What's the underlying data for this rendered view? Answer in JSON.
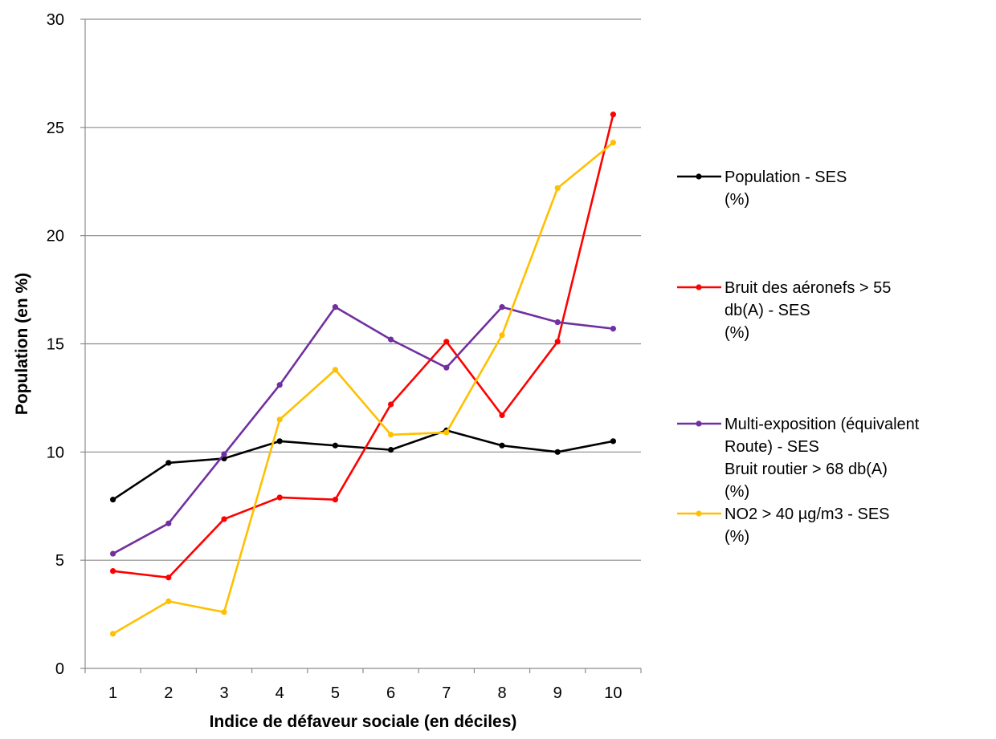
{
  "chart_data": {
    "type": "line",
    "title": "",
    "xlabel": "Indice de défaveur sociale (en déciles)",
    "ylabel": "Population (en %)",
    "categories": [
      "1",
      "2",
      "3",
      "4",
      "5",
      "6",
      "7",
      "8",
      "9",
      "10"
    ],
    "ylim": [
      0,
      30
    ],
    "yticks": [
      0,
      5,
      10,
      15,
      20,
      25,
      30
    ],
    "grid": "horizontal",
    "legend_position": "right",
    "series": [
      {
        "name": "Population - SES (%)",
        "legend_lines": [
          "Population - SES",
          "(%)"
        ],
        "color": "#000000",
        "values": [
          7.8,
          9.5,
          9.7,
          10.5,
          10.3,
          10.1,
          11.0,
          10.3,
          10.0,
          10.5
        ]
      },
      {
        "name": "Bruit des aéronefs > 55 db(A) - SES (%)",
        "legend_lines": [
          "Bruit des aéronefs > 55",
          "db(A) - SES",
          "(%)"
        ],
        "color": "#ff0000",
        "values": [
          4.5,
          4.2,
          6.9,
          7.9,
          7.8,
          12.2,
          15.1,
          11.7,
          15.1,
          25.6
        ]
      },
      {
        "name": "Multi-exposition (équivalent Route) - SES Bruit routier > 68 db(A) (%)",
        "legend_lines": [
          "Multi-exposition (équivalent",
          "Route) - SES",
          "Bruit routier > 68 db(A)",
          "(%)"
        ],
        "color": "#7030a0",
        "values": [
          5.3,
          6.7,
          9.9,
          13.1,
          16.7,
          15.2,
          13.9,
          16.7,
          16.0,
          15.7
        ]
      },
      {
        "name": "NO2 > 40 µg/m3 - SES (%)",
        "legend_lines": [
          "NO2 > 40 µg/m3 - SES",
          "(%)"
        ],
        "color": "#ffc000",
        "values": [
          1.6,
          3.1,
          2.6,
          11.5,
          13.8,
          10.8,
          10.9,
          15.4,
          22.2,
          24.3
        ]
      }
    ]
  }
}
